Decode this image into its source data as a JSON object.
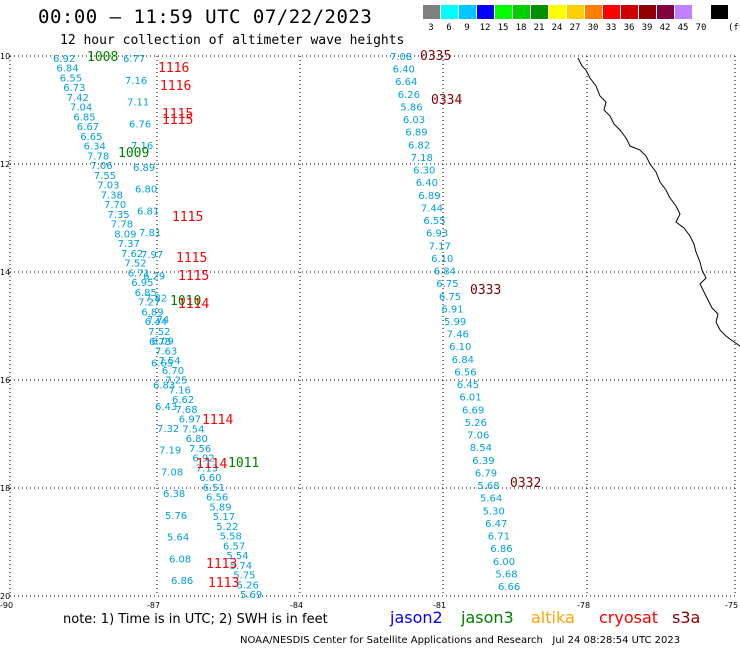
{
  "header": {
    "title": "00:00 – 11:59 UTC 07/22/2023",
    "subtitle": "12 hour collection of altimeter wave heights"
  },
  "legend": {
    "unit": "(ft)",
    "items": [
      {
        "label": "3",
        "color": "#808080"
      },
      {
        "label": "6",
        "color": "#00ffff"
      },
      {
        "label": "9",
        "color": "#00c8ff"
      },
      {
        "label": "12",
        "color": "#0000ff"
      },
      {
        "label": "15",
        "color": "#00ff00"
      },
      {
        "label": "18",
        "color": "#00d000"
      },
      {
        "label": "21",
        "color": "#009000"
      },
      {
        "label": "24",
        "color": "#ffff00"
      },
      {
        "label": "27",
        "color": "#ffd000"
      },
      {
        "label": "30",
        "color": "#ff8000"
      },
      {
        "label": "33",
        "color": "#ff0000"
      },
      {
        "label": "36",
        "color": "#d00000"
      },
      {
        "label": "39",
        "color": "#900000"
      },
      {
        "label": "42",
        "color": "#800040"
      },
      {
        "label": "45",
        "color": "#c080ff"
      },
      {
        "label": "70",
        "color": "#ffffff"
      },
      {
        "label": "",
        "color": "#000000"
      }
    ]
  },
  "map": {
    "lat_labels": [
      "10",
      "12",
      "14",
      "16",
      "18",
      "20"
    ],
    "lon_labels": [
      "-90",
      "-87",
      "-84",
      "-81",
      "-78",
      "-75"
    ],
    "obs_color": "#00a0e0",
    "track_a": [
      "6.92",
      "6.84",
      "6.55",
      "6.73",
      "7.42",
      "7.04",
      "6.85",
      "6.67",
      "6.65",
      "6.34",
      "7.78",
      "7.06",
      "7.55",
      "7.03",
      "7.38",
      "7.70",
      "7.35",
      "7.78",
      "8.09",
      "7.37",
      "7.62",
      "7.52",
      "6.71",
      "6.95",
      "6.85",
      "7.27",
      "6.89",
      "6.44",
      "7.52",
      "8.09",
      "7.63",
      "7.54",
      "6.70",
      "7.25",
      "7.16",
      "6.62",
      "7.68",
      "6.97",
      "7.54",
      "6.80",
      "7.56",
      "6.92",
      "7.13",
      "6.60",
      "6.51",
      "6.56",
      "5.89",
      "5.17",
      "5.22",
      "5.58",
      "6.57",
      "5.54",
      "5.74",
      "5.75",
      "5.26",
      "5.69"
    ],
    "track_b": [
      "6.77",
      "7.16",
      "7.11",
      "6.76",
      "7.16",
      "6.89",
      "6.80",
      "6.81",
      "7.81",
      "7.97",
      "6.29",
      "7.82",
      "7.74",
      "6.73",
      "6.65",
      "6.83",
      "6.43",
      "7.32",
      "7.19",
      "7.08",
      "6.38",
      "5.76",
      "5.64",
      "6.08",
      "6.86"
    ],
    "track_c": [
      "7.08",
      "6.40",
      "6.64",
      "6.26",
      "5.86",
      "6.03",
      "6.89",
      "6.82",
      "7.18",
      "6.30",
      "6.40",
      "6.89",
      "7.44",
      "6.55",
      "6.93",
      "7.17",
      "6.10",
      "6.84",
      "6.75",
      "6.75",
      "6.91",
      "5.99",
      "7.46",
      "6.10",
      "6.84",
      "6.56",
      "6.45",
      "6.01",
      "6.69",
      "5.26",
      "7.06",
      "8.54",
      "6.39",
      "6.79",
      "5.68",
      "5.64",
      "5.30",
      "6.47",
      "6.71",
      "6.86",
      "6.00",
      "5.68",
      "6.66"
    ],
    "passes": [
      {
        "text": "1008",
        "color": "#008000"
      },
      {
        "text": "1116",
        "color": "#ff0000"
      },
      {
        "text": "1116",
        "color": "#ff0000"
      },
      {
        "text": "1115",
        "color": "#ff0000"
      },
      {
        "text": "1115",
        "color": "#ff0000"
      },
      {
        "text": "1009",
        "color": "#008000"
      },
      {
        "text": "1115",
        "color": "#ff0000"
      },
      {
        "text": "1115",
        "color": "#ff0000"
      },
      {
        "text": "1115",
        "color": "#ff0000"
      },
      {
        "text": "1010",
        "color": "#008000"
      },
      {
        "text": "1114",
        "color": "#ff0000"
      },
      {
        "text": "1114",
        "color": "#ff0000"
      },
      {
        "text": "1114",
        "color": "#ff0000"
      },
      {
        "text": "1011",
        "color": "#008000"
      },
      {
        "text": "1113",
        "color": "#ff0000"
      },
      {
        "text": "1113",
        "color": "#ff0000"
      },
      {
        "text": "0335",
        "color": "#800000"
      },
      {
        "text": "0334",
        "color": "#800000"
      },
      {
        "text": "0333",
        "color": "#800000"
      },
      {
        "text": "0332",
        "color": "#800000"
      }
    ]
  },
  "note": "note: 1) Time is in UTC; 2) SWH is in feet",
  "satellites": [
    {
      "name": "jason2",
      "color": "#0000ff"
    },
    {
      "name": "jason3",
      "color": "#008000"
    },
    {
      "name": "altika",
      "color": "#ffa500"
    },
    {
      "name": "cryosat",
      "color": "#ff0000"
    },
    {
      "name": "s3a",
      "color": "#800000"
    }
  ],
  "footer": "NOAA/NESDIS Center for Satellite Applications and Research   Jul 24 08:28:54 UTC 2023"
}
